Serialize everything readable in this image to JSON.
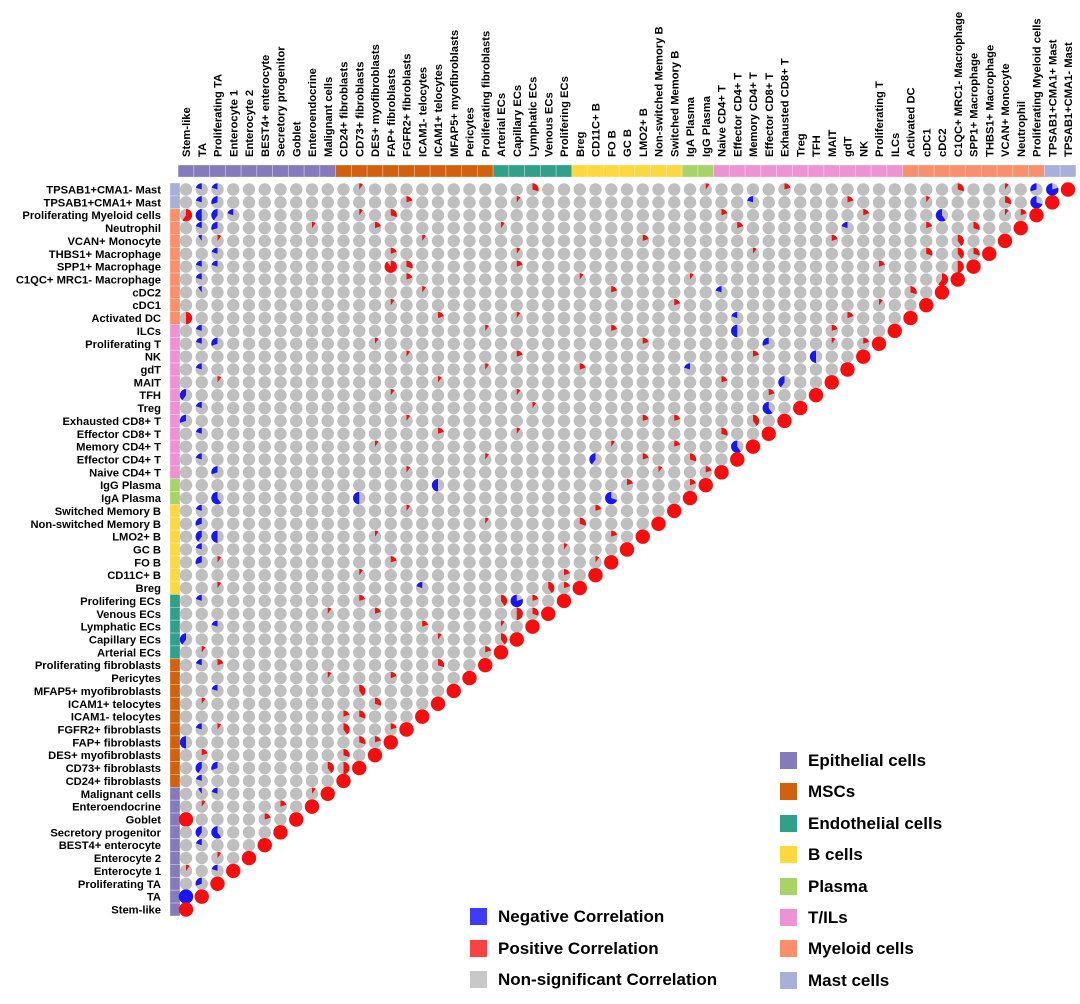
{
  "legend_correlation": {
    "items": [
      {
        "label": "Negative Correlation",
        "color": "#3c3cfa"
      },
      {
        "label": "Positive Correlation",
        "color": "#fb4242"
      },
      {
        "label": "Non-significant Correlation",
        "color": "#c8c8c8"
      }
    ]
  },
  "legend_groups": {
    "items": [
      {
        "label": "Epithelial cells",
        "color": "#857bbc"
      },
      {
        "label": "MSCs",
        "color": "#d2610e"
      },
      {
        "label": "Endothelial cells",
        "color": "#2fa189"
      },
      {
        "label": "B cells",
        "color": "#fdd83f"
      },
      {
        "label": "Plasma",
        "color": "#a8d467"
      },
      {
        "label": "T/ILs",
        "color": "#ef92d3"
      },
      {
        "label": "Myeloid cells",
        "color": "#fa8f6b"
      },
      {
        "label": "Mast cells",
        "color": "#a6b0d8"
      }
    ]
  },
  "chart_data": {
    "type": "correlation-pie-matrix",
    "description": "Lower-triangular pairwise correlation matrix of 57 cell types. Each cell is a pie: gray full circle = non-significant; red wedge (clockwise from 12 o'clock, fraction = |r|) = positive correlation; blue wedge (counterclockwise from 12 o'clock, fraction = |r|) = negative correlation. Diagonal = full red (r = 1).",
    "column_labels_left_to_right": [
      "Stem-like",
      "TA",
      "Proliferating TA",
      "Enterocyte 1",
      "Enterocyte 2",
      "BEST4+ enterocyte",
      "Secretory progenitor",
      "Goblet",
      "Enteroendocrine",
      "Malignant cells",
      "CD24+ fibroblasts",
      "CD73+ fibroblasts",
      "DES+ myofibroblasts",
      "FAP+ fibroblasts",
      "FGFR2+ fibroblasts",
      "ICAM1- telocytes",
      "ICAM1+ telocytes",
      "MFAP5+ myofibroblasts",
      "Pericytes",
      "Proliferating fibroblasts",
      "Arterial ECs",
      "Capillary ECs",
      "Lymphatic ECs",
      "Venous ECs",
      "Prolifering ECs",
      "Breg",
      "CD11C+ B",
      "FO B",
      "GC B",
      "LMO2+ B",
      "Non-switched Memory B",
      "Switched Memory B",
      "IgA Plasma",
      "IgG Plasma",
      "Naive CD4+ T",
      "Effector CD4+ T",
      "Memory CD4+ T",
      "Effector CD8+ T",
      "Exhausted CD8+ T",
      "Treg",
      "TFH",
      "MAIT",
      "gdT",
      "NK",
      "Proliferating T",
      "ILCs",
      "Activated DC",
      "cDC1",
      "cDC2",
      "C1QC+ MRC1- Macrophage",
      "SPP1+ Macrophage",
      "THBS1+ Macrophage",
      "VCAN+ Monocyte",
      "Neutrophil",
      "Proliferating Myeloid cells",
      "TPSAB1+CMA1+ Mast",
      "TPSAB1+CMA1- Mast"
    ],
    "row_labels_note": "Row labels top-to-bottom are the reverse of column_labels_left_to_right.",
    "groups": [
      {
        "name": "Epithelial cells",
        "color": "#857bbc",
        "start": 0,
        "end": 9
      },
      {
        "name": "MSCs",
        "color": "#d2610e",
        "start": 10,
        "end": 19
      },
      {
        "name": "Endothelial cells",
        "color": "#2fa189",
        "start": 20,
        "end": 24
      },
      {
        "name": "B cells",
        "color": "#fdd83f",
        "start": 25,
        "end": 31
      },
      {
        "name": "Plasma",
        "color": "#a8d467",
        "start": 32,
        "end": 33
      },
      {
        "name": "T/ILs",
        "color": "#ef92d3",
        "start": 34,
        "end": 45
      },
      {
        "name": "Myeloid cells",
        "color": "#fa8f6b",
        "start": 46,
        "end": 54
      },
      {
        "name": "Mast cells",
        "color": "#a6b0d8",
        "start": 55,
        "end": 56
      }
    ],
    "pie_colors": {
      "positive": "#f70d0d",
      "negative": "#1a16f3",
      "nonsignificant": "#bfbfbf"
    },
    "cell_encoding": ". = non-significant gray | 1-9 = positive, |r| = digit/10 | a-i = negative, |r| = (letter index)/10 | R = positive 1.0 | B = negative 1.0 | last char of each row = diagonal (R). Row i (top to bottom) has 57-i cells, columns left to right.",
    "cells_rows_top_to_bottom": [
      [
        ".bb.......",
        ".1........",
        "..3.......",
        "...1....2.",
        ".........3",
        "..1.chR"
      ],
      [
        ".bc.......",
        "....2.....",
        ".1........",
        "......b...",
        "..2....1..",
        "..3.gR"
      ],
      [
        "6edb......",
        ".1.3......",
        "..........",
        "....2.....",
        "...2....f.",
        "..12R"
      ],
      [
        ".bc.....1.",
        "..2.......",
        "1.........",
        ".....2....",
        "..b....2..",
        "3..R"
      ],
      [
        ".a1.......",
        ".....1....",
        ".........2",
        "..........",
        ".2.......4",
        "..R"
      ],
      [
        "..b.......",
        "...2......",
        ".1........",
        "......1...",
        ".......3.4",
        "3R"
      ],
      [
        ".bb.......",
        "...93.....",
        ".2........",
        "..........",
        "....2....5",
        "R"
      ],
      [
        ".b........",
        "....2.....",
        ".....1....",
        "..1.......",
        "........6R"
      ],
      [
        ".a........",
        ".....1....",
        ".......2..",
        "....b.....",
        "......3.R"
      ],
      [
        "..........",
        "...1......",
        "..........",
        ".2........",
        "....1..R"
      ],
      [
        "5.........",
        "......2...",
        ".1........",
        ".....b....",
        "..2...R"
      ],
      [
        ".b........",
        ".........1",
        ".......2..",
        ".....e....",
        ".2...R"
      ],
      [
        ".bc.......",
        "..1.......",
        ".........2",
        ".......c..",
        ".1.2R"
      ],
      [
        "..........",
        "....1.....",
        ".2........",
        "......2...",
        "e..R"
      ],
      [
        ".b........",
        ".........1",
        ".....2....",
        "..b.......",
        "..R"
      ],
      [
        "..1.......",
        "......1...",
        "..........",
        "....2...d.",
        ".R"
      ],
      [
        "d.........",
        "...1......",
        ".1........",
        ".......2..",
        "R"
      ],
      [
        ".b........",
        "..........",
        "..1.......",
        ".......f.R"
      ],
      [
        "c.........",
        "....1.....",
        ".........2",
        ".2....4.R"
      ],
      [
        ".b........",
        "......2...",
        ".1........",
        "....3..R"
      ],
      [
        "..........",
        "..1.......",
        ".......1..",
        ".2...fR"
      ],
      [
        ".b........",
        ".........1",
        "......d..2",
        "..3..R"
      ],
      [
        "..c.......",
        "....1.....",
        "..........",
        "1..2R"
      ],
      [
        "..........",
        "......e...",
        "........2.",
        "..2R"
      ],
      [
        "..f.......",
        ".e........",
        ".......g..",
        "..R"
      ],
      [
        ".b........",
        "....1.....",
        "......2...",
        ".R"
      ],
      [
        ".c........",
        ".........1",
        ".....3....",
        "R"
      ],
      [
        ".de.......",
        "..1.......",
        ".......2.R"
      ],
      [
        ".b........",
        "..........",
        "....1...R"
      ],
      [
        ".c1.......",
        "...2......",
        "......1R"
      ],
      [
        "..........",
        ".1........",
        "....2.R"
      ],
      [
        "..1.......",
        ".....b....",
        "...42R"
      ],
      [
        ".b........",
        ".2........",
        "4h2.R"
      ],
      [
        ".........1",
        "..2.......",
        ".53R"
      ],
      [
        "..b.......",
        ".....2....",
        "1.R"
      ],
      [
        "d.........",
        "......1...",
        "4R"
      ],
      [
        ".1........",
        ".........2",
        "R"
      ],
      [
        ".b2.......",
        "......3..R"
      ],
      [
        ".........1",
        "...2....R"
      ],
      [
        "..b.......",
        ".4.....R"
      ],
      [
        ".1........",
        "..3...R"
      ],
      [
        "..........",
        "23...R"
      ],
      [
        ".b1.......",
        "4..2R"
      ],
      [
        "e.........",
        ".32R"
      ],
      [
        ".2........",
        "3.R"
      ],
      [
        ".dc......4",
        "5R"
      ],
      [
        ".b........",
        "R"
      ],
      [
        ".ab.....1R"
      ],
      [
        ".1....2.R"
      ],
      [
        "R....2.R"
      ],
      [
        ".df...R"
      ],
      [
        ".b...R"
      ],
      [
        "..1.R"
      ],
      [
        "1.bR"
      ],
      [
        ".cR"
      ],
      [
        "BR"
      ],
      [
        "R"
      ]
    ]
  }
}
